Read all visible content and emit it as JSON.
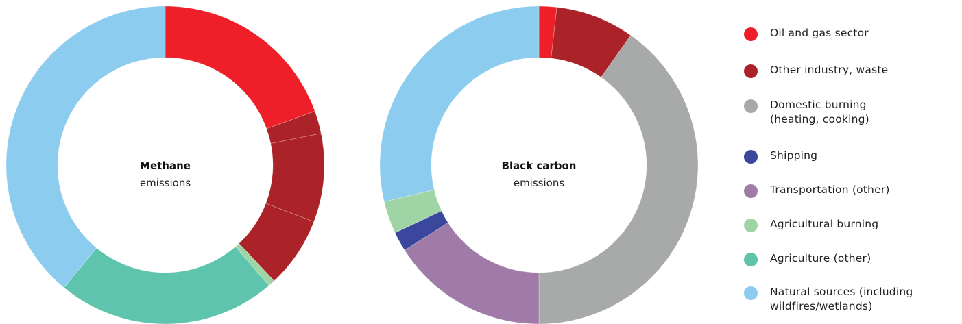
{
  "chart_data": [
    {
      "type": "pie",
      "title": "Methane",
      "subtitle": "emissions",
      "categories": [
        "Oil and gas sector",
        "Other industry, waste",
        "Other industry, waste",
        "Other industry, waste",
        "Agricultural burning",
        "Agriculture (other)",
        "Natural sources (including wildfires/wetlands)"
      ],
      "values": [
        19.5,
        2.3,
        9.0,
        7.2,
        0.7,
        22.3,
        39.0
      ]
    },
    {
      "type": "pie",
      "title": "Black carbon",
      "subtitle": "emissions",
      "categories": [
        "Oil and gas sector",
        "Other industry, waste",
        "Domestic burning (heating, cooking)",
        "Transportation (other)",
        "Shipping",
        "Agricultural burning",
        "Natural sources (including wildfires/wetlands)"
      ],
      "values": [
        1.8,
        8.0,
        40.2,
        16.0,
        2.0,
        3.3,
        28.7
      ]
    }
  ],
  "legend": [
    {
      "label": "Oil and gas sector",
      "color": "#ee1f28"
    },
    {
      "label": "Other industry, waste",
      "color": "#ac2229"
    },
    {
      "label": "Domestic burning\n(heating, cooking)",
      "color": "#a8aaa9"
    },
    {
      "label": "Shipping",
      "color": "#3b479d"
    },
    {
      "label": "Transportation (other)",
      "color": "#a17ba8"
    },
    {
      "label": "Agricultural burning",
      "color": "#9fd5a5"
    },
    {
      "label": "Agriculture (other)",
      "color": "#5fc4ad"
    },
    {
      "label": "Natural sources (including\nwildfires/wetlands)",
      "color": "#8ccdef"
    }
  ],
  "category_colors": {
    "Oil and gas sector": "#ee1f28",
    "Other industry, waste": "#ac2229",
    "Domestic burning (heating, cooking)": "#a8aaa9",
    "Shipping": "#3b479d",
    "Transportation (other)": "#a17ba8",
    "Agricultural burning": "#9fd5a5",
    "Agriculture (other)": "#5fc4ad",
    "Natural sources (including wildfires/wetlands)": "#8ccdef"
  }
}
